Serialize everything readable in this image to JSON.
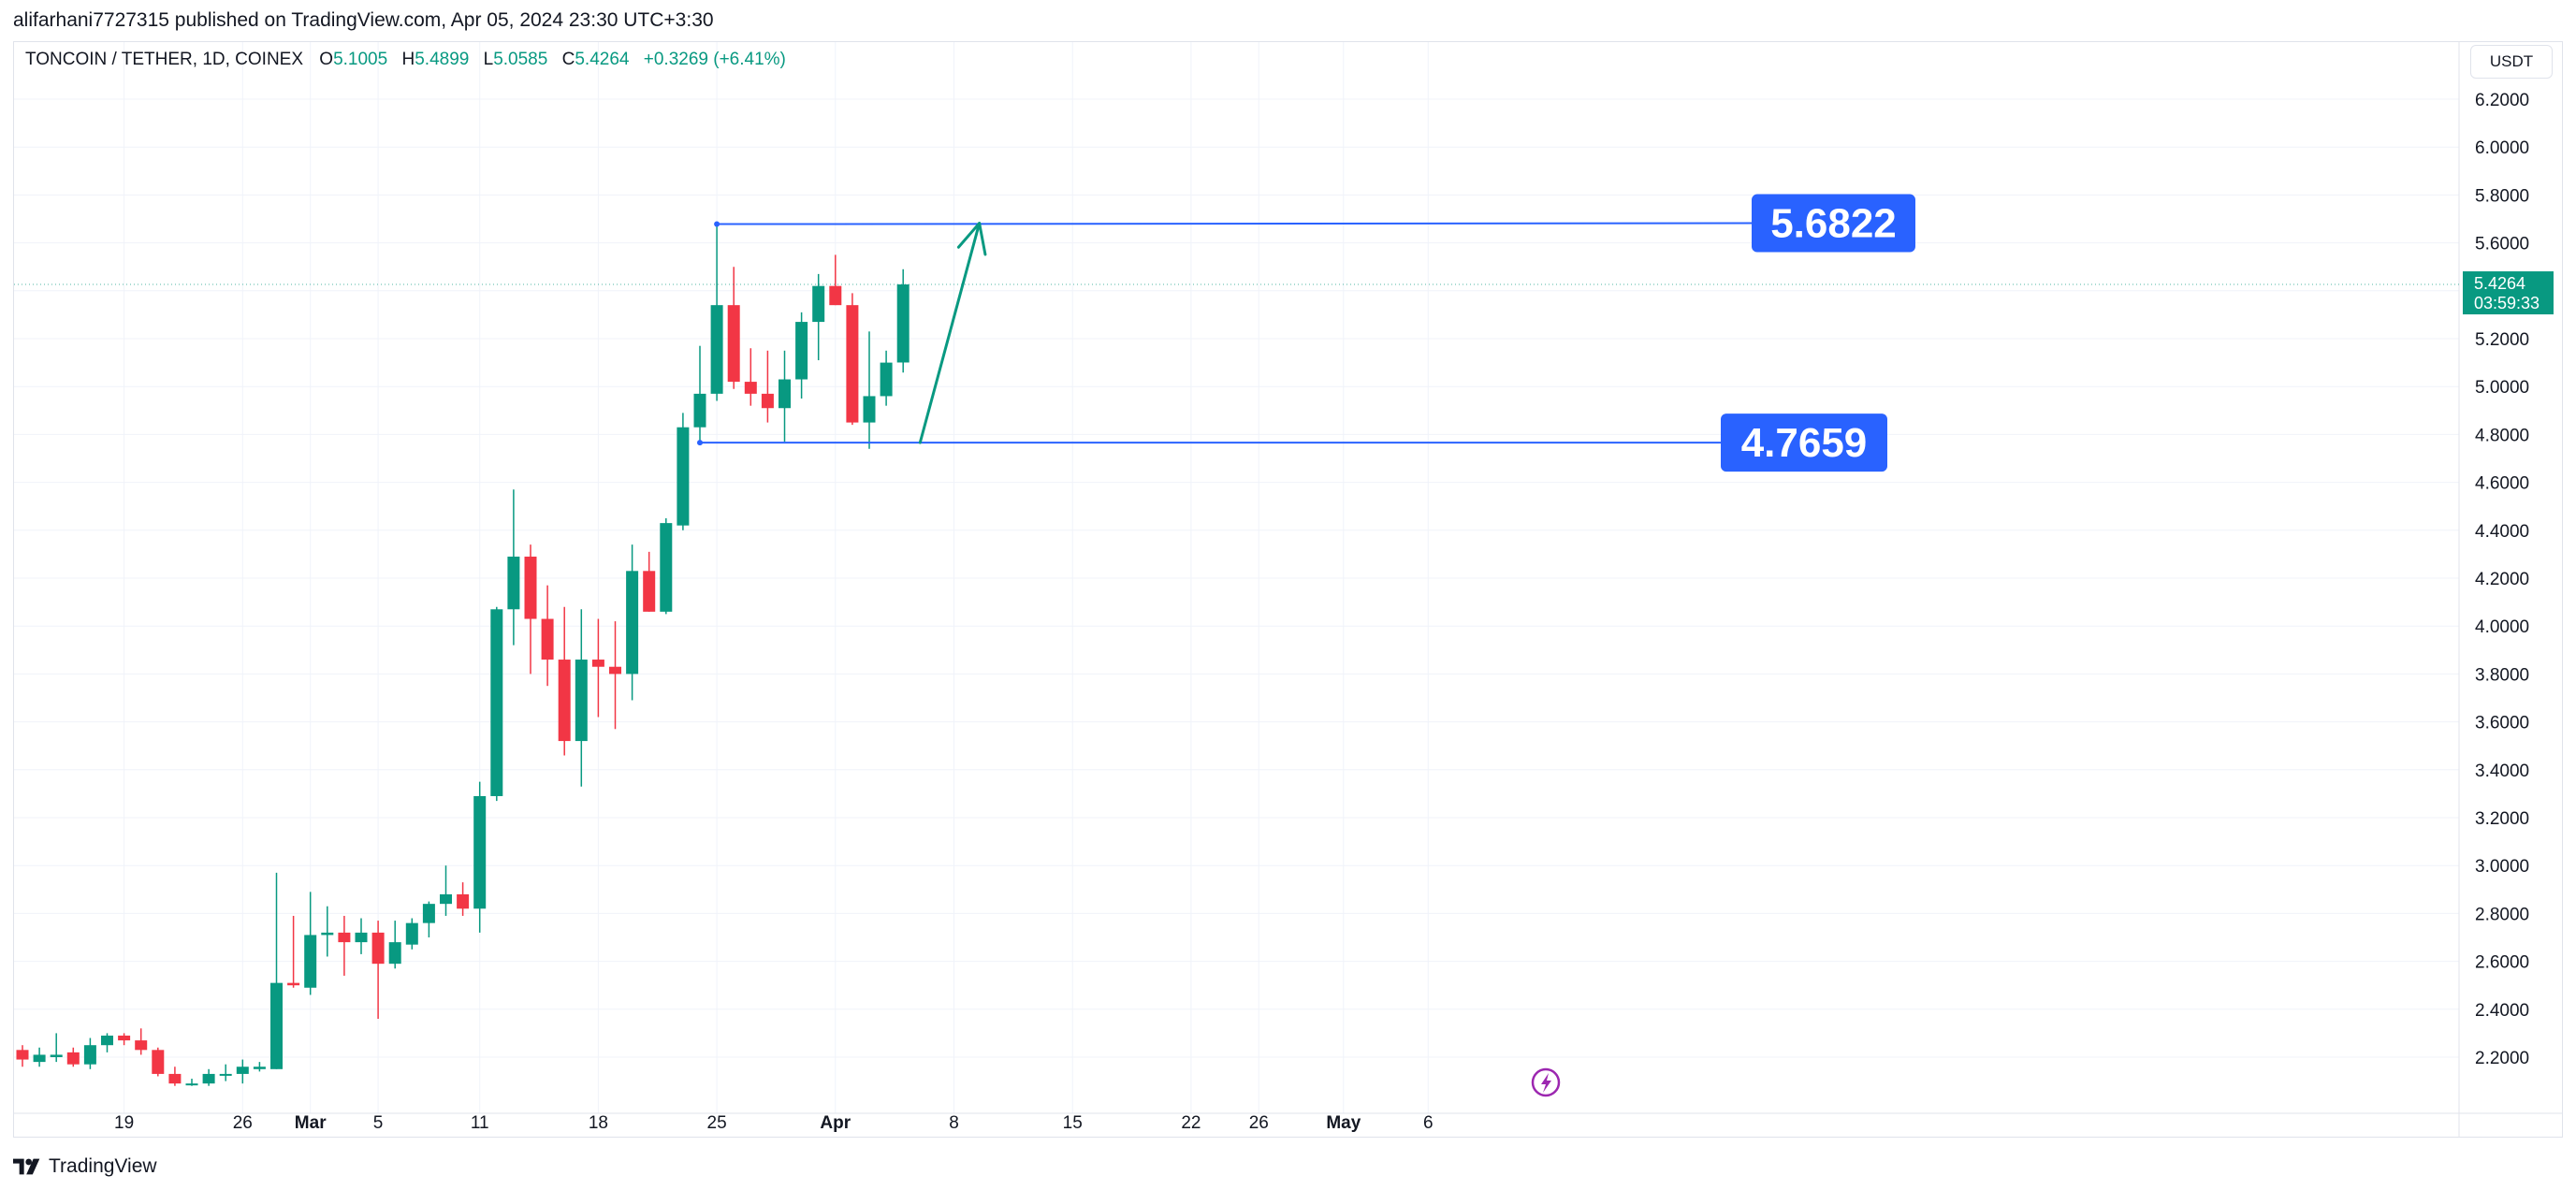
{
  "header": {
    "published": "alifarhani7727315 published on TradingView.com, Apr 05, 2024 23:30 UTC+3:30"
  },
  "legend": {
    "symbol": "TONCOIN / TETHER, 1D, COINEX",
    "open_label": "O",
    "open": "5.1005",
    "high_label": "H",
    "high": "5.4899",
    "low_label": "L",
    "low": "5.0585",
    "close_label": "C",
    "close": "5.4264",
    "change": "+0.3269 (+6.41%)"
  },
  "currency_button": "USDT",
  "price_badge": {
    "price": "5.4264",
    "countdown": "03:59:33"
  },
  "annotations": {
    "upper_label": "5.6822",
    "lower_label": "4.7659"
  },
  "footer": {
    "brand": "TradingView"
  },
  "colors": {
    "up": "#089981",
    "down": "#f23645",
    "annotation": "#2962ff",
    "arrow": "#089981"
  },
  "chart_data": {
    "type": "candlestick",
    "title": "TONCOIN / TETHER, 1D, COINEX",
    "ylim": [
      2.1,
      6.3
    ],
    "y_ticks": [
      "6.2000",
      "6.0000",
      "5.8000",
      "5.6000",
      "5.4000",
      "5.2000",
      "5.0000",
      "4.8000",
      "4.6000",
      "4.4000",
      "4.2000",
      "4.0000",
      "3.8000",
      "3.6000",
      "3.4000",
      "3.2000",
      "3.0000",
      "2.8000",
      "2.6000",
      "2.4000",
      "2.2000"
    ],
    "x_ticks": [
      {
        "label": "19",
        "day": 6
      },
      {
        "label": "26",
        "day": 13
      },
      {
        "label": "Mar",
        "day": 17
      },
      {
        "label": "5",
        "day": 21
      },
      {
        "label": "11",
        "day": 27
      },
      {
        "label": "18",
        "day": 34
      },
      {
        "label": "25",
        "day": 41
      },
      {
        "label": "Apr",
        "day": 48
      },
      {
        "label": "8",
        "day": 55
      },
      {
        "label": "15",
        "day": 62
      },
      {
        "label": "22",
        "day": 69
      },
      {
        "label": "26",
        "day": 73
      },
      {
        "label": "May",
        "day": 78
      },
      {
        "label": "6",
        "day": 83
      }
    ],
    "candles": [
      {
        "o": 2.23,
        "h": 2.25,
        "l": 2.16,
        "c": 2.19
      },
      {
        "o": 2.18,
        "h": 2.24,
        "l": 2.16,
        "c": 2.21
      },
      {
        "o": 2.2,
        "h": 2.3,
        "l": 2.18,
        "c": 2.21
      },
      {
        "o": 2.22,
        "h": 2.24,
        "l": 2.16,
        "c": 2.17
      },
      {
        "o": 2.17,
        "h": 2.28,
        "l": 2.15,
        "c": 2.25
      },
      {
        "o": 2.25,
        "h": 2.3,
        "l": 2.22,
        "c": 2.29
      },
      {
        "o": 2.29,
        "h": 2.3,
        "l": 2.25,
        "c": 2.27
      },
      {
        "o": 2.27,
        "h": 2.32,
        "l": 2.21,
        "c": 2.23
      },
      {
        "o": 2.23,
        "h": 2.24,
        "l": 2.12,
        "c": 2.13
      },
      {
        "o": 2.13,
        "h": 2.16,
        "l": 2.08,
        "c": 2.09
      },
      {
        "o": 2.09,
        "h": 2.11,
        "l": 2.08,
        "c": 2.09
      },
      {
        "o": 2.09,
        "h": 2.15,
        "l": 2.08,
        "c": 2.13
      },
      {
        "o": 2.13,
        "h": 2.17,
        "l": 2.1,
        "c": 2.13
      },
      {
        "o": 2.13,
        "h": 2.19,
        "l": 2.09,
        "c": 2.16
      },
      {
        "o": 2.15,
        "h": 2.18,
        "l": 2.14,
        "c": 2.16
      },
      {
        "o": 2.15,
        "h": 2.97,
        "l": 2.15,
        "c": 2.51
      },
      {
        "o": 2.51,
        "h": 2.79,
        "l": 2.49,
        "c": 2.5
      },
      {
        "o": 2.49,
        "h": 2.89,
        "l": 2.46,
        "c": 2.71
      },
      {
        "o": 2.71,
        "h": 2.83,
        "l": 2.62,
        "c": 2.72
      },
      {
        "o": 2.72,
        "h": 2.79,
        "l": 2.54,
        "c": 2.68
      },
      {
        "o": 2.68,
        "h": 2.78,
        "l": 2.63,
        "c": 2.72
      },
      {
        "o": 2.72,
        "h": 2.77,
        "l": 2.36,
        "c": 2.59
      },
      {
        "o": 2.59,
        "h": 2.77,
        "l": 2.57,
        "c": 2.68
      },
      {
        "o": 2.67,
        "h": 2.78,
        "l": 2.65,
        "c": 2.76
      },
      {
        "o": 2.76,
        "h": 2.85,
        "l": 2.7,
        "c": 2.84
      },
      {
        "o": 2.84,
        "h": 3.0,
        "l": 2.79,
        "c": 2.88
      },
      {
        "o": 2.88,
        "h": 2.93,
        "l": 2.79,
        "c": 2.82
      },
      {
        "o": 2.82,
        "h": 3.35,
        "l": 2.72,
        "c": 3.29
      },
      {
        "o": 3.29,
        "h": 4.08,
        "l": 3.27,
        "c": 4.07
      },
      {
        "o": 4.07,
        "h": 4.57,
        "l": 3.92,
        "c": 4.29
      },
      {
        "o": 4.29,
        "h": 4.34,
        "l": 3.8,
        "c": 4.03
      },
      {
        "o": 4.03,
        "h": 4.17,
        "l": 3.75,
        "c": 3.86
      },
      {
        "o": 3.86,
        "h": 4.08,
        "l": 3.46,
        "c": 3.52
      },
      {
        "o": 3.52,
        "h": 4.07,
        "l": 3.33,
        "c": 3.86
      },
      {
        "o": 3.86,
        "h": 4.03,
        "l": 3.62,
        "c": 3.83
      },
      {
        "o": 3.83,
        "h": 4.02,
        "l": 3.57,
        "c": 3.8
      },
      {
        "o": 3.8,
        "h": 4.34,
        "l": 3.69,
        "c": 4.23
      },
      {
        "o": 4.23,
        "h": 4.31,
        "l": 4.06,
        "c": 4.06
      },
      {
        "o": 4.06,
        "h": 4.45,
        "l": 4.05,
        "c": 4.43
      },
      {
        "o": 4.42,
        "h": 4.89,
        "l": 4.4,
        "c": 4.83
      },
      {
        "o": 4.83,
        "h": 5.17,
        "l": 4.77,
        "c": 4.97
      },
      {
        "o": 4.97,
        "h": 5.68,
        "l": 4.94,
        "c": 5.34
      },
      {
        "o": 5.34,
        "h": 5.5,
        "l": 4.99,
        "c": 5.02
      },
      {
        "o": 5.02,
        "h": 5.16,
        "l": 4.92,
        "c": 4.97
      },
      {
        "o": 4.97,
        "h": 5.15,
        "l": 4.85,
        "c": 4.91
      },
      {
        "o": 4.91,
        "h": 5.15,
        "l": 4.77,
        "c": 5.03
      },
      {
        "o": 5.03,
        "h": 5.31,
        "l": 4.95,
        "c": 5.27
      },
      {
        "o": 5.27,
        "h": 5.47,
        "l": 5.11,
        "c": 5.42
      },
      {
        "o": 5.42,
        "h": 5.55,
        "l": 5.34,
        "c": 5.34
      },
      {
        "o": 5.34,
        "h": 5.39,
        "l": 4.84,
        "c": 4.85
      },
      {
        "o": 4.85,
        "h": 5.23,
        "l": 4.74,
        "c": 4.96
      },
      {
        "o": 4.96,
        "h": 5.15,
        "l": 4.92,
        "c": 5.1
      },
      {
        "o": 5.1005,
        "h": 5.4899,
        "l": 5.0585,
        "c": 5.4264
      }
    ],
    "levels": [
      5.6822,
      4.7659
    ],
    "current_price": 5.4264,
    "arrow": {
      "from": {
        "day": 53,
        "price": 4.7659
      },
      "to": {
        "day": 56.5,
        "price": 5.6822
      }
    }
  }
}
